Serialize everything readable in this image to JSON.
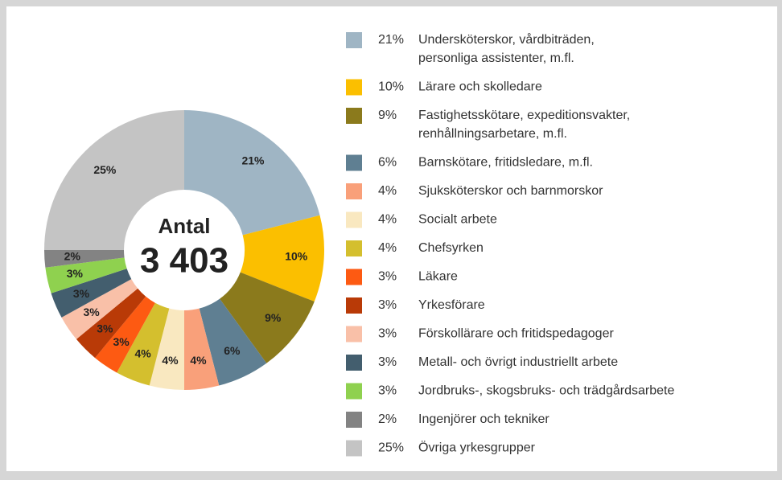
{
  "chart_data": {
    "type": "donut",
    "center_label": "Antal",
    "center_value": "3 403",
    "categories": [
      [
        "Undersköterskor, vårdbiträden,",
        "personliga assistenter, m.fl."
      ],
      [
        "Lärare och skolledare"
      ],
      [
        "Fastighetsskötare, expeditionsvakter,",
        "renhållningsarbetare, m.fl."
      ],
      [
        "Barnskötare, fritidsledare, m.fl."
      ],
      [
        "Sjuksköterskor och barnmorskor"
      ],
      [
        "Socialt arbete"
      ],
      [
        "Chefsyrken"
      ],
      [
        "Läkare"
      ],
      [
        "Yrkesförare"
      ],
      [
        "Förskollärare och fritidspedagoger"
      ],
      [
        "Metall- och övrigt industriellt arbete"
      ],
      [
        "Jordbruks-, skogsbruks- och trädgårdsarbete"
      ],
      [
        "Ingenjörer och tekniker"
      ],
      [
        "Övriga yrkesgrupper"
      ]
    ],
    "values": [
      21,
      10,
      9,
      6,
      4,
      4,
      4,
      3,
      3,
      3,
      3,
      3,
      2,
      25
    ],
    "value_labels": [
      "21%",
      "10%",
      "9%",
      "6%",
      "4%",
      "4%",
      "4%",
      "3%",
      "3%",
      "3%",
      "3%",
      "3%",
      "2%",
      "25%"
    ],
    "colors": [
      "#9fb5c4",
      "#fbbf00",
      "#8b7a1c",
      "#5f7f92",
      "#f9a07a",
      "#f9e8c0",
      "#d4bf2e",
      "#fd5a12",
      "#b93a07",
      "#f9c0a8",
      "#435e6e",
      "#8fd14f",
      "#838383",
      "#c4c4c4"
    ]
  }
}
